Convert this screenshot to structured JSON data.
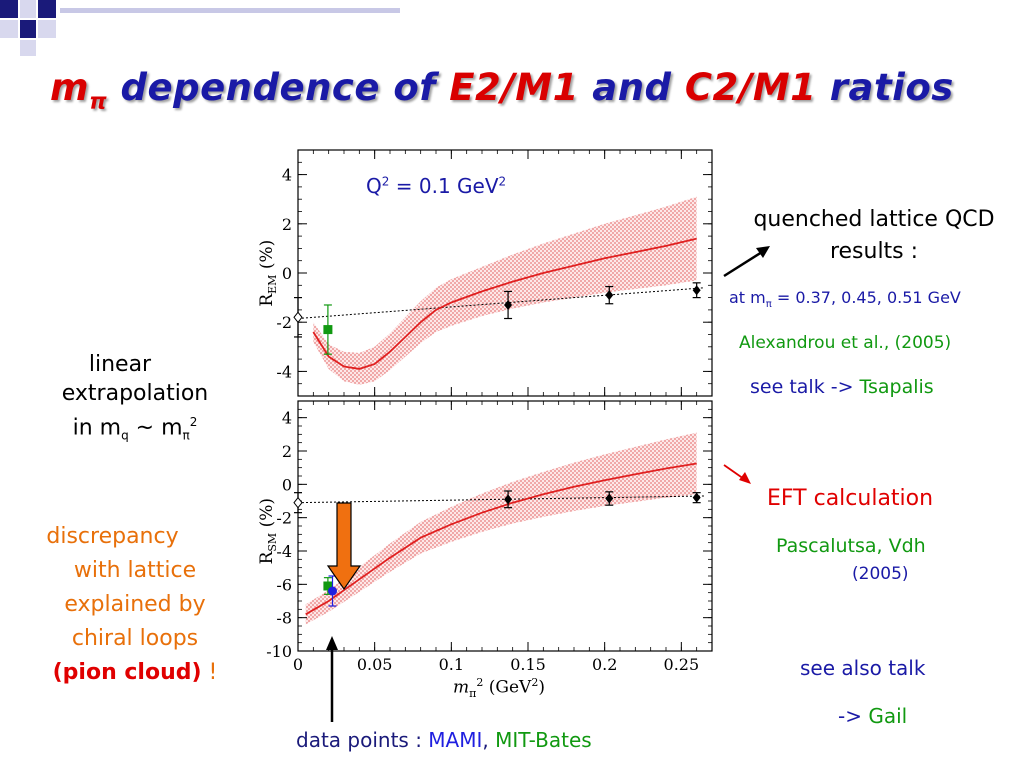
{
  "colors": {
    "title_red": "#d90000",
    "title_blue": "#1a1aa6",
    "curve_red": "#e02020",
    "band": "#f2a0a0",
    "mami_green": "#119911",
    "bates_blue": "#1f1fe0",
    "arrow_orange": "#f07010"
  },
  "title": {
    "part1": "m",
    "part1_sub": "π",
    "part2": " dependence of ",
    "part3": "E2/M1",
    "part4": " and ",
    "part5": "C2/M1",
    "part6": " ratios"
  },
  "annotations": {
    "linear": [
      "linear",
      "extrapolation",
      "in m"
    ],
    "linear_tail": {
      "q": "q",
      "tilde": " ~ m",
      "pi": "π",
      "sq": "2"
    },
    "discrepancy": [
      "discrepancy",
      "with lattice",
      "explained by",
      "chiral loops"
    ],
    "pion_cloud": "(pion cloud)",
    "excl": " !",
    "quenched": [
      "quenched lattice QCD",
      "results :"
    ],
    "at_m": "at m",
    "at_m_sub": "π",
    "at_m_values": " = 0.37, 0.45, 0.51 GeV",
    "alexandrou": "Alexandrou et al., (2005)",
    "see_talk": "see talk  -> ",
    "tsapalis": "Tsapalis",
    "eft": "EFT calculation",
    "pascalutsa": "Pascalutsa, Vdh",
    "pascalutsa_year": "(2005)",
    "see_also": "see also talk",
    "gail_arrow": "-> ",
    "gail": "Gail",
    "data_points": "data points : ",
    "mami": "MAMI",
    "comma": ", ",
    "bates": "MIT-Bates"
  },
  "chart_data": [
    {
      "type": "scatter",
      "panel": "top",
      "annotation": "Q² = 0.1 GeV²",
      "annotation_parts": {
        "q": "Q",
        "sup1": "2",
        "mid": " = 0.1 GeV",
        "sup2": "2"
      },
      "ylabel": "R_EM (%)",
      "ylabel_parts": {
        "r": "R",
        "sub": "EM",
        "unit": " (%)"
      },
      "xlim": [
        0,
        0.27
      ],
      "ylim": [
        -5,
        5
      ],
      "yticks": [
        4,
        2,
        0,
        -2,
        -4
      ],
      "series": [
        {
          "name": "lattice",
          "x": [
            0.137,
            0.203,
            0.26
          ],
          "y": [
            -1.3,
            -0.9,
            -0.7
          ],
          "err": [
            0.55,
            0.35,
            0.3
          ]
        },
        {
          "name": "MAMI",
          "x": [
            0.0195
          ],
          "y": [
            -2.3
          ],
          "err": [
            1.0
          ]
        },
        {
          "name": "extrapolation",
          "x": [
            0.0
          ],
          "y": [
            -1.8
          ],
          "err": [
            0.8
          ]
        }
      ],
      "linear_fit": {
        "x": [
          0.0,
          0.265
        ],
        "y": [
          -1.85,
          -0.6
        ]
      },
      "eft_curve": {
        "x": [
          0.01,
          0.02,
          0.03,
          0.04,
          0.05,
          0.06,
          0.07,
          0.08,
          0.09,
          0.1,
          0.12,
          0.14,
          0.16,
          0.18,
          0.2,
          0.22,
          0.24,
          0.26
        ],
        "y": [
          -2.4,
          -3.4,
          -3.8,
          -3.9,
          -3.7,
          -3.2,
          -2.6,
          -2.0,
          -1.5,
          -1.2,
          -0.75,
          -0.35,
          0.0,
          0.3,
          0.6,
          0.85,
          1.1,
          1.4
        ],
        "band": [
          0.4,
          0.5,
          0.6,
          0.65,
          0.7,
          0.75,
          0.8,
          0.85,
          0.9,
          0.95,
          1.0,
          1.1,
          1.2,
          1.3,
          1.4,
          1.5,
          1.6,
          1.7
        ]
      }
    },
    {
      "type": "scatter",
      "panel": "bottom",
      "ylabel": "R_SM (%)",
      "ylabel_parts": {
        "r": "R",
        "sub": "SM",
        "unit": " (%)"
      },
      "xlabel": "m_π² (GeV²)",
      "xlabel_parts": {
        "m": "m",
        "sub": "π",
        "sup": "2",
        "rest": " (GeV",
        "sup2": "2",
        "close": ")"
      },
      "xlim": [
        0,
        0.27
      ],
      "ylim": [
        -10,
        5
      ],
      "xticks": [
        0,
        0.05,
        0.1,
        0.15,
        0.2,
        0.25
      ],
      "xticklabels": [
        "0",
        "0.05",
        "0.1",
        "0.15",
        "0.2",
        "0.25"
      ],
      "yticks": [
        4,
        2,
        0,
        -2,
        -4,
        -6,
        -8,
        -10
      ],
      "series": [
        {
          "name": "lattice",
          "x": [
            0.137,
            0.203,
            0.26
          ],
          "y": [
            -0.9,
            -0.85,
            -0.8
          ],
          "err": [
            0.5,
            0.4,
            0.3
          ]
        },
        {
          "name": "MAMI",
          "x": [
            0.0195
          ],
          "y": [
            -6.1
          ],
          "err": [
            0.5
          ]
        },
        {
          "name": "MIT-Bates",
          "x": [
            0.0225
          ],
          "y": [
            -6.4
          ],
          "err": [
            0.9
          ]
        },
        {
          "name": "extrapolation",
          "x": [
            0.0
          ],
          "y": [
            -1.1
          ],
          "err": [
            0.6
          ]
        }
      ],
      "linear_fit": {
        "x": [
          0.0,
          0.265
        ],
        "y": [
          -1.1,
          -0.7
        ]
      },
      "eft_curve": {
        "x": [
          0.005,
          0.02,
          0.04,
          0.06,
          0.08,
          0.1,
          0.12,
          0.14,
          0.16,
          0.18,
          0.2,
          0.22,
          0.24,
          0.26
        ],
        "y": [
          -7.8,
          -7.0,
          -5.7,
          -4.4,
          -3.2,
          -2.4,
          -1.7,
          -1.1,
          -0.6,
          -0.15,
          0.25,
          0.6,
          0.95,
          1.25
        ],
        "band": [
          0.6,
          0.65,
          0.75,
          0.85,
          0.95,
          1.05,
          1.15,
          1.25,
          1.35,
          1.45,
          1.55,
          1.65,
          1.75,
          1.85
        ]
      }
    }
  ]
}
